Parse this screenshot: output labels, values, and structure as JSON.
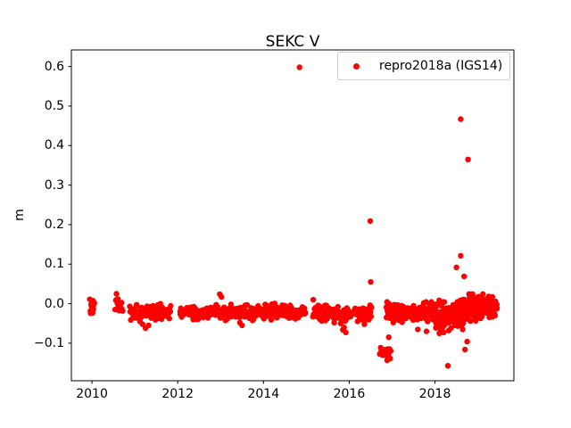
{
  "figure": {
    "title": "SEKC V",
    "ylabel": "m",
    "background_color": "#ffffff",
    "axes_color": "#000000"
  },
  "legend": {
    "label": "repro2018a (IGS14)",
    "marker_color": "#ff0000",
    "position": "upper right"
  },
  "chart_data": {
    "type": "scatter",
    "title": "SEKC V",
    "xlabel": "",
    "ylabel": "m",
    "legend_entries": [
      "repro2018a (IGS14)"
    ],
    "marker": {
      "shape": "dot",
      "color": "#ff0000",
      "radius_px": 3.2
    },
    "xlim": [
      2009.52,
      2019.84
    ],
    "ylim": [
      -0.195,
      0.642
    ],
    "xticks": [
      2010,
      2012,
      2014,
      2016,
      2018
    ],
    "yticks": [
      -0.1,
      0.0,
      0.1,
      0.2,
      0.3,
      0.4,
      0.5,
      0.6
    ],
    "grid": false,
    "legend_position": "upper right",
    "seed": 7,
    "clusters": [
      {
        "x_start": 2009.95,
        "x_end": 2010.06,
        "n": 14,
        "mean": -0.01,
        "sd": 0.009
      },
      {
        "x_start": 2010.54,
        "x_end": 2010.72,
        "n": 16,
        "mean": -0.008,
        "sd": 0.014
      },
      {
        "x_start": 2010.88,
        "x_end": 2011.84,
        "n": 95,
        "mean": -0.022,
        "sd": 0.009
      },
      {
        "x_start": 2012.05,
        "x_end": 2014.98,
        "n": 300,
        "mean": -0.021,
        "sd": 0.009
      },
      {
        "x_start": 2015.15,
        "x_end": 2016.05,
        "n": 90,
        "mean": -0.026,
        "sd": 0.009
      },
      {
        "x_start": 2016.12,
        "x_end": 2016.52,
        "n": 45,
        "mean": -0.028,
        "sd": 0.01
      },
      {
        "x_start": 2016.7,
        "x_end": 2016.97,
        "n": 22,
        "mean": -0.126,
        "sd": 0.009
      },
      {
        "x_start": 2016.86,
        "x_end": 2018.02,
        "n": 170,
        "mean": -0.022,
        "sd": 0.011
      },
      {
        "x_start": 2018.0,
        "x_end": 2018.68,
        "n": 150,
        "mean": -0.03,
        "sd": 0.016
      },
      {
        "x_start": 2018.6,
        "x_end": 2019.12,
        "n": 130,
        "mean": -0.014,
        "sd": 0.016
      },
      {
        "x_start": 2019.05,
        "x_end": 2019.45,
        "n": 80,
        "mean": -0.008,
        "sd": 0.011
      }
    ],
    "extra_points": [
      [
        2010.57,
        0.025
      ],
      [
        2011.12,
        -0.045
      ],
      [
        2011.18,
        -0.052
      ],
      [
        2011.25,
        -0.062
      ],
      [
        2011.32,
        -0.055
      ],
      [
        2012.98,
        0.024
      ],
      [
        2013.02,
        0.017
      ],
      [
        2013.45,
        -0.048
      ],
      [
        2013.5,
        -0.055
      ],
      [
        2015.16,
        0.01
      ],
      [
        2015.65,
        -0.048
      ],
      [
        2015.8,
        -0.05
      ],
      [
        2015.85,
        -0.066
      ],
      [
        2015.88,
        -0.06
      ],
      [
        2015.92,
        -0.073
      ],
      [
        2016.92,
        -0.085
      ],
      [
        2017.6,
        -0.065
      ],
      [
        2017.8,
        -0.07
      ],
      [
        2018.1,
        -0.075
      ],
      [
        2018.2,
        -0.073
      ],
      [
        2018.32,
        -0.068
      ],
      [
        2018.7,
        -0.116
      ],
      [
        2018.75,
        -0.096
      ]
    ],
    "outliers": [
      [
        2014.84,
        0.598
      ],
      [
        2016.49,
        0.209
      ],
      [
        2016.5,
        0.055
      ],
      [
        2018.3,
        -0.157
      ],
      [
        2018.5,
        0.092
      ],
      [
        2018.6,
        0.121
      ],
      [
        2018.6,
        0.467
      ],
      [
        2018.68,
        0.069
      ],
      [
        2018.77,
        0.365
      ]
    ]
  }
}
